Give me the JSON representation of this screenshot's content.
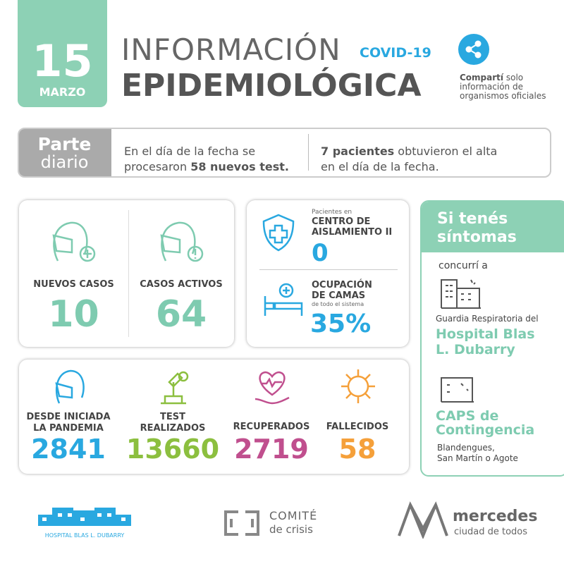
{
  "header": {
    "day": "15",
    "month": "MARZO",
    "title_light": "INFORMACIÓN",
    "title_tag": "COVID-19",
    "title_bold": "EPIDEMIOLÓGICA",
    "share_bold": "Compartí",
    "share_rest": "solo",
    "share_line2": "información de",
    "share_line3": "organismos oficiales"
  },
  "parte": {
    "label_bold": "Parte",
    "label_light": "diario",
    "left_line1": "En el día de la fecha se",
    "left_line2a": "procesaron",
    "left_line2b": "58 nuevos test.",
    "right_line1a": "7 pacientes",
    "right_line1b": "obtuvieron el alta",
    "right_line2": "en el día de la fecha."
  },
  "cases": [
    {
      "label": "NUEVOS CASOS",
      "value": "10"
    },
    {
      "label": "CASOS ACTIVOS",
      "value": "64"
    }
  ],
  "isolation": {
    "small": "Pacientes en",
    "label_line1": "CENTRO DE",
    "label_line2": "AISLAMIENTO II",
    "value": "0"
  },
  "beds": {
    "label_line1": "OCUPACIÓN",
    "label_line2": "DE CAMAS",
    "small": "de todo el sistema",
    "value": "35%"
  },
  "totals": [
    {
      "label_line1": "DESDE INICIADA",
      "label_line2": "LA PANDEMIA",
      "value": "2841"
    },
    {
      "label_line1": "TEST",
      "label_line2": "REALIZADOS",
      "value": "13660"
    },
    {
      "label_line1": "RECUPERADOS",
      "value": "2719"
    },
    {
      "label_line1": "FALLECIDOS",
      "value": "58"
    }
  ],
  "symptoms": {
    "title_line1": "Si tenés",
    "title_line2": "síntomas",
    "intro": "concurrí a",
    "place1_caption": "Guardia Respiratoria del",
    "place1_line1": "Hospital Blas",
    "place1_line2": "L. Dubarry",
    "place2_line1": "CAPS de",
    "place2_line2": "Contingencia",
    "place2_caption1": "Blandengues,",
    "place2_caption2": "San Martín o Agote"
  },
  "footer": {
    "hospital": "HOSPITAL BLAS L. DUBARRY",
    "comite1": "COMITÉ",
    "comite2": "de crisis",
    "city": "mercedes",
    "city_tag": "ciudad de todos"
  }
}
